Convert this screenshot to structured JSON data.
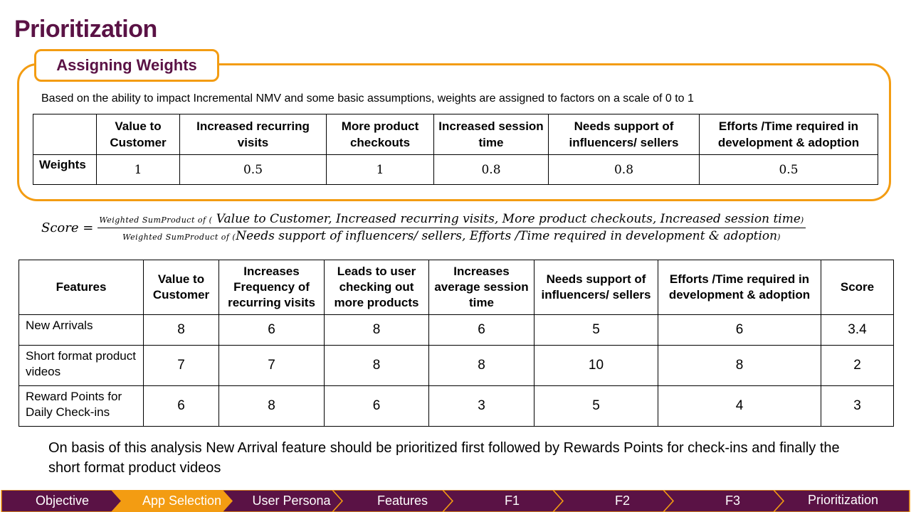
{
  "title": "Prioritization",
  "weights": {
    "tab_label": "Assigning Weights",
    "description": "Based on the ability to impact Incremental NMV and some basic assumptions, weights are assigned to factors on a scale of 0 to 1",
    "columns": [
      "Value to Customer",
      "Increased recurring visits",
      "More product checkouts",
      "Increased session time",
      "Needs support of influencers/ sellers",
      "Efforts /Time required in development & adoption"
    ],
    "row_label": "Weights",
    "values": [
      "1",
      "0.5",
      "1",
      "0.8",
      "0.8",
      "0.5"
    ]
  },
  "formula": {
    "lhs": "Score =",
    "num_prefix": "Weighted SumProduct of (",
    "num_body": "Value to Customer, Increased recurring visits, More product checkouts, Increased session time",
    "num_suffix": ")",
    "den_prefix": "Weighted SumProduct of (",
    "den_body": "Needs support of influencers/ sellers,  Efforts /Time required in development & adoption",
    "den_suffix": ")"
  },
  "features_table": {
    "headers": [
      "Features",
      "Value to Customer",
      "Increases Frequency of recurring visits",
      "Leads to user checking out more products",
      "Increases average session time",
      "Needs support of influencers/ sellers",
      "Efforts /Time required in development & adoption",
      "Score"
    ],
    "rows": [
      {
        "name": "New Arrivals",
        "values": [
          "8",
          "6",
          "8",
          "6",
          "5",
          "6",
          "3.4"
        ]
      },
      {
        "name": "Short format product videos",
        "values": [
          "7",
          "7",
          "8",
          "8",
          "10",
          "8",
          "2"
        ]
      },
      {
        "name": "Reward Points for Daily Check-ins",
        "values": [
          "6",
          "8",
          "6",
          "3",
          "5",
          "4",
          "3"
        ]
      }
    ]
  },
  "conclusion": "On basis of this analysis New Arrival feature should be prioritized first followed by Rewards Points for check-ins and finally the short format product videos",
  "nav": {
    "items": [
      "Objective",
      "App Selection",
      "User Persona",
      "Features",
      "F1",
      "F2",
      "F3",
      "Prioritization"
    ],
    "active": "App Selection",
    "colors": {
      "default": "#5a1245",
      "active": "#f39c12",
      "border": "#f39c12"
    }
  }
}
